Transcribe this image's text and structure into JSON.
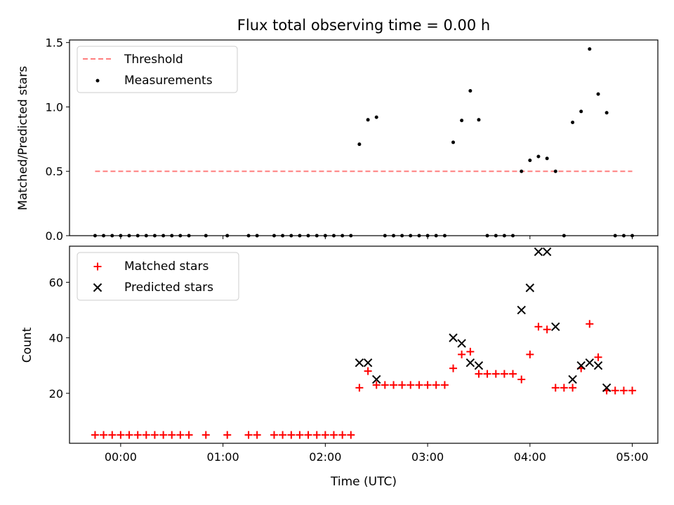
{
  "chart_data": [
    {
      "type": "scatter",
      "title": "Flux total observing time = 0.00 h",
      "xlabel": "",
      "ylabel": "Matched/Predicted stars",
      "xlim": [
        -0.5,
        5.25
      ],
      "ylim": [
        0,
        1.52
      ],
      "yticks": [
        0,
        0.5,
        1.0,
        1.5
      ],
      "ytick_labels": [
        "0.0",
        "0.5",
        "1.0",
        "1.5"
      ],
      "xticks": [
        0,
        1,
        2,
        3,
        4,
        5
      ],
      "legend_position": "upper-left",
      "threshold": {
        "name": "Threshold",
        "y": 0.5,
        "x_range": [
          -0.25,
          5.0
        ],
        "color": "#ff7f7f"
      },
      "series": [
        {
          "name": "Measurements",
          "color": "#000000",
          "x": [
            -0.25,
            -0.167,
            -0.083,
            0.0,
            0.083,
            0.167,
            0.25,
            0.333,
            0.417,
            0.5,
            0.583,
            0.667,
            0.833,
            1.042,
            1.25,
            1.333,
            1.5,
            1.583,
            1.667,
            1.75,
            1.833,
            1.917,
            2.0,
            2.083,
            2.167,
            2.25,
            2.333,
            2.417,
            2.5,
            2.583,
            2.667,
            2.75,
            2.833,
            2.917,
            3.0,
            3.083,
            3.167,
            3.25,
            3.333,
            3.417,
            3.5,
            3.583,
            3.667,
            3.75,
            3.833,
            3.917,
            4.0,
            4.083,
            4.167,
            4.25,
            4.333,
            4.417,
            4.5,
            4.583,
            4.667,
            4.75,
            4.833,
            4.917,
            5.0
          ],
          "y": [
            0,
            0,
            0,
            0,
            0,
            0,
            0,
            0,
            0,
            0,
            0,
            0,
            0,
            0,
            0,
            0,
            0,
            0,
            0,
            0,
            0,
            0,
            0,
            0,
            0,
            0,
            0.71,
            0.9,
            0.92,
            0,
            0,
            0,
            0,
            0,
            0,
            0,
            0,
            0.725,
            0.895,
            1.125,
            0.9,
            0,
            0,
            0,
            0,
            0.5,
            0.585,
            0.615,
            0.6,
            0.5,
            0,
            0.88,
            0.965,
            1.45,
            1.1,
            0.955,
            0,
            0,
            0
          ]
        }
      ]
    },
    {
      "type": "scatter",
      "title": "",
      "xlabel": "Time (UTC)",
      "ylabel": "Count",
      "xlim": [
        -0.5,
        5.25
      ],
      "ylim": [
        2,
        73
      ],
      "yticks": [
        20,
        40,
        60
      ],
      "ytick_labels": [
        "20",
        "40",
        "60"
      ],
      "xticks": [
        0,
        1,
        2,
        3,
        4,
        5
      ],
      "xtick_labels": [
        "00:00",
        "01:00",
        "02:00",
        "03:00",
        "04:00",
        "05:00"
      ],
      "legend_position": "upper-left",
      "series": [
        {
          "name": "Matched stars",
          "marker": "plus",
          "color": "#ff0000",
          "x": [
            -0.25,
            -0.167,
            -0.083,
            0.0,
            0.083,
            0.167,
            0.25,
            0.333,
            0.417,
            0.5,
            0.583,
            0.667,
            0.833,
            1.042,
            1.25,
            1.333,
            1.5,
            1.583,
            1.667,
            1.75,
            1.833,
            1.917,
            2.0,
            2.083,
            2.167,
            2.25,
            2.333,
            2.417,
            2.5,
            2.583,
            2.667,
            2.75,
            2.833,
            2.917,
            3.0,
            3.083,
            3.167,
            3.25,
            3.333,
            3.417,
            3.5,
            3.583,
            3.667,
            3.75,
            3.833,
            3.917,
            4.0,
            4.083,
            4.167,
            4.25,
            4.333,
            4.417,
            4.5,
            4.583,
            4.667,
            4.75,
            4.833,
            4.917,
            5.0
          ],
          "y": [
            5,
            5,
            5,
            5,
            5,
            5,
            5,
            5,
            5,
            5,
            5,
            5,
            5,
            5,
            5,
            5,
            5,
            5,
            5,
            5,
            5,
            5,
            5,
            5,
            5,
            5,
            22,
            28,
            23,
            23,
            23,
            23,
            23,
            23,
            23,
            23,
            23,
            29,
            34,
            35,
            27,
            27,
            27,
            27,
            27,
            25,
            34,
            44,
            43,
            22,
            22,
            22,
            29,
            45,
            33,
            21,
            21,
            21,
            21
          ]
        },
        {
          "name": "Predicted stars",
          "marker": "x",
          "color": "#000000",
          "x": [
            2.333,
            2.417,
            2.5,
            3.25,
            3.333,
            3.417,
            3.5,
            3.917,
            4.0,
            4.083,
            4.167,
            4.25,
            4.417,
            4.5,
            4.583,
            4.667,
            4.75
          ],
          "y": [
            31,
            31,
            25,
            40,
            38,
            31,
            30,
            50,
            58,
            71,
            71,
            44,
            25,
            30,
            31,
            30,
            22
          ]
        }
      ]
    }
  ]
}
